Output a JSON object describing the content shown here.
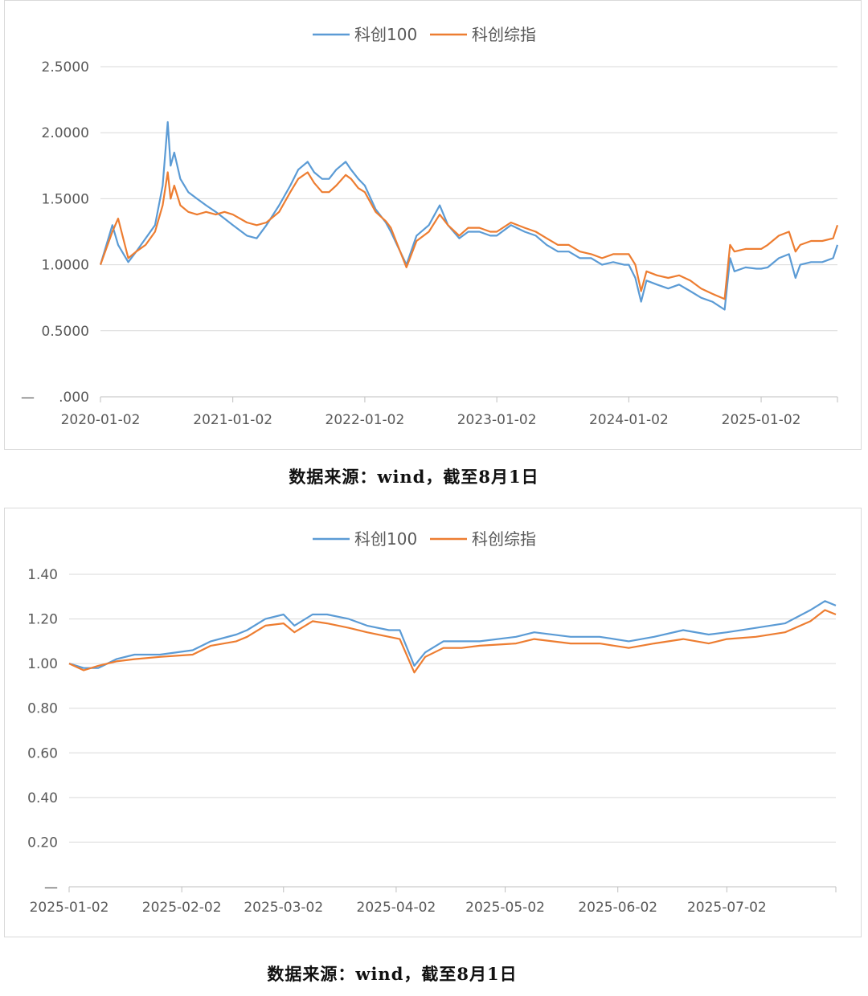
{
  "captions": [
    "数据来源：wind，截至8月1日",
    "数据来源：wind，截至8月1日"
  ],
  "colors": {
    "kc100": "#5b9bd5",
    "kczz": "#ed7d31",
    "grid": "#d9d9d9",
    "axis": "#bfbfbf"
  },
  "chart_data": [
    {
      "type": "line",
      "legend_position": "top",
      "grid": true,
      "ylim": [
        0,
        2.5
      ],
      "yticks": [
        0,
        0.5,
        1.0,
        1.5,
        2.0,
        2.5
      ],
      "ytick_labels": [
        ".000",
        "0.5000",
        "1.0000",
        "1.5000",
        "2.0000",
        "2.5000"
      ],
      "ytick_label_zero_prefix": "—",
      "xticks": [
        "2020-01-02",
        "2021-01-02",
        "2022-01-02",
        "2023-01-02",
        "2024-01-02",
        "2025-01-02"
      ],
      "xlim": [
        "2020-01-02",
        "2025-08-01"
      ],
      "series": [
        {
          "name": "科创100",
          "color": "#5b9bd5",
          "x": [
            "2020-01-02",
            "2020-02-04",
            "2020-02-20",
            "2020-03-19",
            "2020-04-10",
            "2020-05-06",
            "2020-06-01",
            "2020-06-22",
            "2020-07-06",
            "2020-07-14",
            "2020-07-24",
            "2020-08-10",
            "2020-09-01",
            "2020-09-25",
            "2020-10-20",
            "2020-11-16",
            "2020-12-10",
            "2021-01-02",
            "2021-02-10",
            "2021-03-09",
            "2021-04-05",
            "2021-05-10",
            "2021-06-10",
            "2021-07-02",
            "2021-07-28",
            "2021-08-15",
            "2021-09-06",
            "2021-09-25",
            "2021-10-15",
            "2021-11-10",
            "2021-11-25",
            "2021-12-15",
            "2022-01-02",
            "2022-02-01",
            "2022-03-01",
            "2022-03-15",
            "2022-04-27",
            "2022-05-25",
            "2022-06-28",
            "2022-07-28",
            "2022-08-20",
            "2022-09-20",
            "2022-10-15",
            "2022-11-15",
            "2022-12-15",
            "2023-01-02",
            "2023-02-10",
            "2023-03-20",
            "2023-04-20",
            "2023-05-20",
            "2023-06-20",
            "2023-07-20",
            "2023-08-20",
            "2023-09-20",
            "2023-10-20",
            "2023-11-20",
            "2023-12-20",
            "2024-01-02",
            "2024-01-20",
            "2024-02-05",
            "2024-02-20",
            "2024-03-20",
            "2024-04-20",
            "2024-05-20",
            "2024-06-20",
            "2024-07-20",
            "2024-08-20",
            "2024-09-23",
            "2024-10-08",
            "2024-10-20",
            "2024-11-20",
            "2024-12-20",
            "2025-01-02",
            "2025-01-20",
            "2025-02-20",
            "2025-03-20",
            "2025-04-07",
            "2025-04-20",
            "2025-05-20",
            "2025-06-20",
            "2025-07-20",
            "2025-08-01"
          ],
          "y": [
            1.0,
            1.3,
            1.15,
            1.02,
            1.1,
            1.2,
            1.3,
            1.6,
            2.08,
            1.75,
            1.85,
            1.65,
            1.55,
            1.5,
            1.45,
            1.4,
            1.35,
            1.3,
            1.22,
            1.2,
            1.3,
            1.45,
            1.6,
            1.72,
            1.78,
            1.7,
            1.65,
            1.65,
            1.72,
            1.78,
            1.72,
            1.65,
            1.6,
            1.42,
            1.32,
            1.25,
            1.0,
            1.22,
            1.3,
            1.45,
            1.3,
            1.2,
            1.25,
            1.25,
            1.22,
            1.22,
            1.3,
            1.25,
            1.22,
            1.15,
            1.1,
            1.1,
            1.05,
            1.05,
            1.0,
            1.02,
            1.0,
            1.0,
            0.9,
            0.72,
            0.88,
            0.85,
            0.82,
            0.85,
            0.8,
            0.75,
            0.72,
            0.66,
            1.05,
            0.95,
            0.98,
            0.97,
            0.97,
            0.98,
            1.05,
            1.08,
            0.9,
            1.0,
            1.02,
            1.02,
            1.05,
            1.15
          ]
        },
        {
          "name": "科创综指",
          "color": "#ed7d31",
          "x": [
            "2020-01-02",
            "2020-02-04",
            "2020-02-20",
            "2020-03-19",
            "2020-04-10",
            "2020-05-06",
            "2020-06-01",
            "2020-06-22",
            "2020-07-06",
            "2020-07-14",
            "2020-07-24",
            "2020-08-10",
            "2020-09-01",
            "2020-09-25",
            "2020-10-20",
            "2020-11-16",
            "2020-12-10",
            "2021-01-02",
            "2021-02-10",
            "2021-03-09",
            "2021-04-05",
            "2021-05-10",
            "2021-06-10",
            "2021-07-02",
            "2021-07-28",
            "2021-08-15",
            "2021-09-06",
            "2021-09-25",
            "2021-10-15",
            "2021-11-10",
            "2021-11-25",
            "2021-12-15",
            "2022-01-02",
            "2022-02-01",
            "2022-03-01",
            "2022-03-15",
            "2022-04-27",
            "2022-05-25",
            "2022-06-28",
            "2022-07-28",
            "2022-08-20",
            "2022-09-20",
            "2022-10-15",
            "2022-11-15",
            "2022-12-15",
            "2023-01-02",
            "2023-02-10",
            "2023-03-20",
            "2023-04-20",
            "2023-05-20",
            "2023-06-20",
            "2023-07-20",
            "2023-08-20",
            "2023-09-20",
            "2023-10-20",
            "2023-11-20",
            "2023-12-20",
            "2024-01-02",
            "2024-01-20",
            "2024-02-05",
            "2024-02-20",
            "2024-03-20",
            "2024-04-20",
            "2024-05-20",
            "2024-06-20",
            "2024-07-20",
            "2024-08-20",
            "2024-09-23",
            "2024-10-08",
            "2024-10-20",
            "2024-11-20",
            "2024-12-20",
            "2025-01-02",
            "2025-01-20",
            "2025-02-20",
            "2025-03-20",
            "2025-04-07",
            "2025-04-20",
            "2025-05-20",
            "2025-06-20",
            "2025-07-20",
            "2025-08-01"
          ],
          "y": [
            1.0,
            1.25,
            1.35,
            1.05,
            1.1,
            1.15,
            1.25,
            1.45,
            1.7,
            1.5,
            1.6,
            1.45,
            1.4,
            1.38,
            1.4,
            1.38,
            1.4,
            1.38,
            1.32,
            1.3,
            1.32,
            1.4,
            1.55,
            1.65,
            1.7,
            1.62,
            1.55,
            1.55,
            1.6,
            1.68,
            1.65,
            1.58,
            1.55,
            1.4,
            1.33,
            1.28,
            0.98,
            1.18,
            1.25,
            1.38,
            1.3,
            1.22,
            1.28,
            1.28,
            1.25,
            1.25,
            1.32,
            1.28,
            1.25,
            1.2,
            1.15,
            1.15,
            1.1,
            1.08,
            1.05,
            1.08,
            1.08,
            1.08,
            1.0,
            0.8,
            0.95,
            0.92,
            0.9,
            0.92,
            0.88,
            0.82,
            0.78,
            0.74,
            1.15,
            1.1,
            1.12,
            1.12,
            1.12,
            1.15,
            1.22,
            1.25,
            1.1,
            1.15,
            1.18,
            1.18,
            1.2,
            1.3
          ]
        }
      ]
    },
    {
      "type": "line",
      "legend_position": "top",
      "grid": true,
      "ylim": [
        0,
        1.4
      ],
      "yticks": [
        0,
        0.2,
        0.4,
        0.6,
        0.8,
        1.0,
        1.2,
        1.4
      ],
      "ytick_labels": [
        "—",
        "0.20",
        "0.40",
        "0.60",
        "0.80",
        "1.00",
        "1.20",
        "1.40"
      ],
      "xticks": [
        "2025-01-02",
        "2025-02-02",
        "2025-03-02",
        "2025-04-02",
        "2025-05-02",
        "2025-06-02",
        "2025-07-02"
      ],
      "xlim": [
        "2025-01-02",
        "2025-08-01"
      ],
      "series": [
        {
          "name": "科创100",
          "color": "#5b9bd5",
          "x": [
            "2025-01-02",
            "2025-01-06",
            "2025-01-10",
            "2025-01-15",
            "2025-01-20",
            "2025-01-27",
            "2025-02-05",
            "2025-02-10",
            "2025-02-17",
            "2025-02-20",
            "2025-02-25",
            "2025-03-02",
            "2025-03-05",
            "2025-03-10",
            "2025-03-14",
            "2025-03-20",
            "2025-03-25",
            "2025-03-31",
            "2025-04-03",
            "2025-04-07",
            "2025-04-10",
            "2025-04-15",
            "2025-04-20",
            "2025-04-25",
            "2025-05-05",
            "2025-05-10",
            "2025-05-20",
            "2025-05-28",
            "2025-06-05",
            "2025-06-12",
            "2025-06-20",
            "2025-06-27",
            "2025-07-02",
            "2025-07-10",
            "2025-07-18",
            "2025-07-25",
            "2025-07-29",
            "2025-08-01"
          ],
          "y": [
            1.0,
            0.98,
            0.98,
            1.02,
            1.04,
            1.04,
            1.06,
            1.1,
            1.13,
            1.15,
            1.2,
            1.22,
            1.17,
            1.22,
            1.22,
            1.2,
            1.17,
            1.15,
            1.15,
            0.99,
            1.05,
            1.1,
            1.1,
            1.1,
            1.12,
            1.14,
            1.12,
            1.12,
            1.1,
            1.12,
            1.15,
            1.13,
            1.14,
            1.16,
            1.18,
            1.24,
            1.28,
            1.26
          ]
        },
        {
          "name": "科创综指",
          "color": "#ed7d31",
          "x": [
            "2025-01-02",
            "2025-01-06",
            "2025-01-10",
            "2025-01-15",
            "2025-01-20",
            "2025-01-27",
            "2025-02-05",
            "2025-02-10",
            "2025-02-17",
            "2025-02-20",
            "2025-02-25",
            "2025-03-02",
            "2025-03-05",
            "2025-03-10",
            "2025-03-14",
            "2025-03-20",
            "2025-03-25",
            "2025-03-31",
            "2025-04-03",
            "2025-04-07",
            "2025-04-10",
            "2025-04-15",
            "2025-04-20",
            "2025-04-25",
            "2025-05-05",
            "2025-05-10",
            "2025-05-20",
            "2025-05-28",
            "2025-06-05",
            "2025-06-12",
            "2025-06-20",
            "2025-06-27",
            "2025-07-02",
            "2025-07-10",
            "2025-07-18",
            "2025-07-25",
            "2025-07-29",
            "2025-08-01"
          ],
          "y": [
            1.0,
            0.97,
            0.99,
            1.01,
            1.02,
            1.03,
            1.04,
            1.08,
            1.1,
            1.12,
            1.17,
            1.18,
            1.14,
            1.19,
            1.18,
            1.16,
            1.14,
            1.12,
            1.11,
            0.96,
            1.03,
            1.07,
            1.07,
            1.08,
            1.09,
            1.11,
            1.09,
            1.09,
            1.07,
            1.09,
            1.11,
            1.09,
            1.11,
            1.12,
            1.14,
            1.19,
            1.24,
            1.22
          ]
        }
      ]
    }
  ]
}
